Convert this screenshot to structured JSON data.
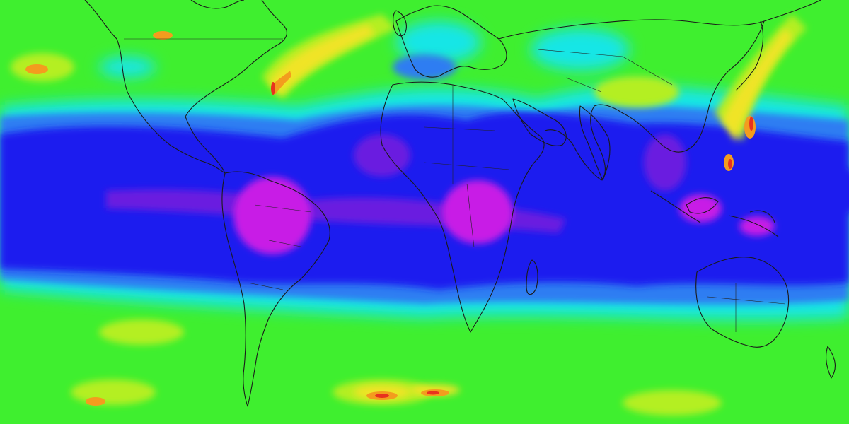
{
  "palette": {
    "magenta": "#c81ee6",
    "violet": "#6a1ee0",
    "blue": "#1e1eef",
    "light_blue": "#2f7df2",
    "cyan": "#19e6e6",
    "green": "#3fef2f",
    "yellow_green": "#b4ef23",
    "yellow": "#f0e428",
    "orange": "#f39c1e",
    "red": "#e8321e",
    "coastline": "#1a1a1a"
  }
}
